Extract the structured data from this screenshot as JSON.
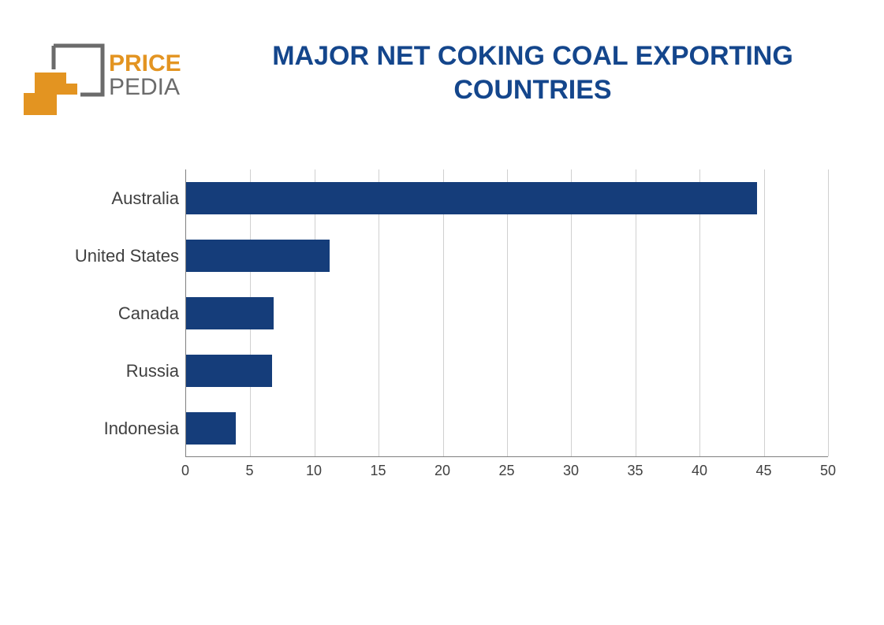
{
  "logo": {
    "text_top": "PRICE",
    "text_bottom": "PEDIA",
    "color_price": "#e39421",
    "color_pedia": "#6b6b6b",
    "square_stroke": "#6b6b6b",
    "arrow_color": "#e39421"
  },
  "title": {
    "text": "MAJOR NET COKING COAL EXPORTING COUNTRIES",
    "color": "#14468c",
    "fontsize": 34
  },
  "chart": {
    "type": "bar-horizontal",
    "categories": [
      "Australia",
      "United States",
      "Canada",
      "Russia",
      "Indonesia"
    ],
    "values": [
      44.5,
      11.2,
      6.8,
      6.7,
      3.9
    ],
    "bar_color": "#153d7a",
    "xlim": [
      0,
      50
    ],
    "xtick_step": 5,
    "xticks": [
      0,
      5,
      10,
      15,
      20,
      25,
      30,
      35,
      40,
      45,
      50
    ],
    "grid_color": "#d0d0d0",
    "axis_color": "#808080",
    "background_color": "#ffffff",
    "label_color": "#404040",
    "label_fontsize": 22,
    "tick_fontsize": 18,
    "bar_height_ratio": 0.55
  }
}
